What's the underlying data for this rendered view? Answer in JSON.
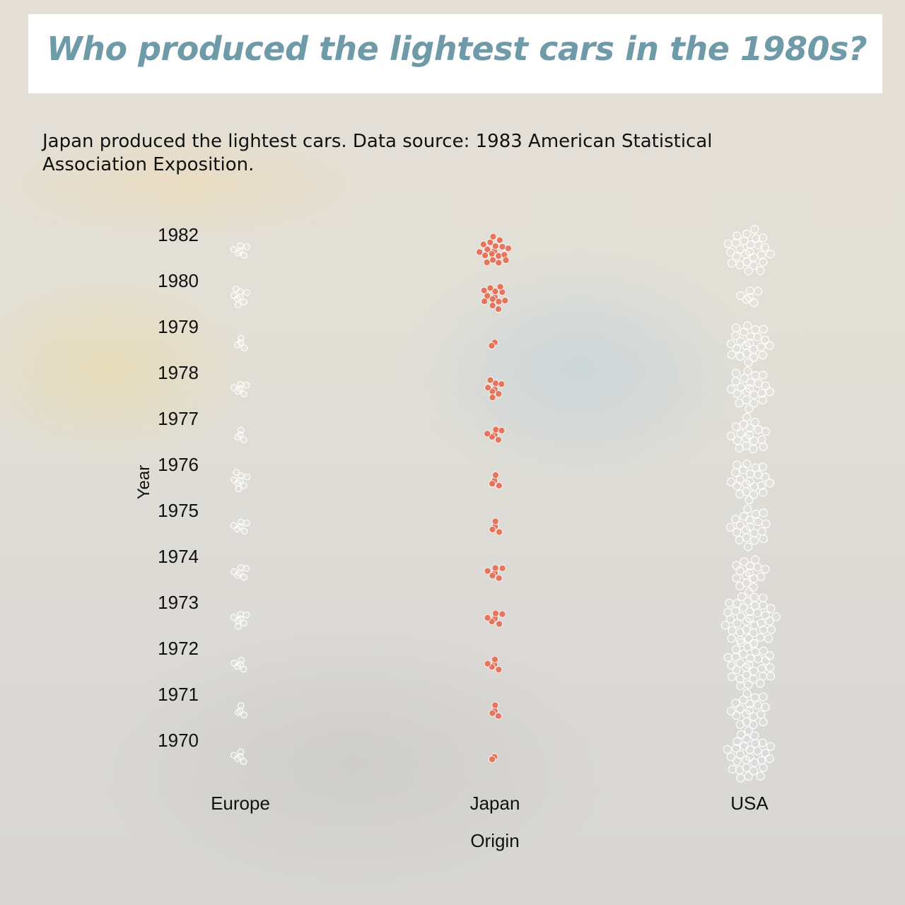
{
  "title": "Who produced the lightest cars in the 1980s?",
  "subtitle": "Japan produced the lightest cars. Data source: 1983 American Statistical Association Exposition.",
  "background": {
    "subject": "yellow-toy-car-photo"
  },
  "colors": {
    "japan": "#e5755c",
    "others": "#ffffff",
    "title": "#6f9aa8"
  },
  "chart_data": {
    "type": "scatter",
    "subtype": "beeswarm",
    "xlabel": "Origin",
    "ylabel": "Year",
    "categories": [
      "Europe",
      "Japan",
      "USA"
    ],
    "years": [
      "1970",
      "1971",
      "1972",
      "1973",
      "1974",
      "1975",
      "1976",
      "1977",
      "1978",
      "1979",
      "1980",
      "1982"
    ],
    "highlight": "Japan",
    "counts": {
      "Europe": [
        5,
        4,
        5,
        7,
        6,
        6,
        8,
        4,
        6,
        4,
        8,
        6
      ],
      "Japan": [
        2,
        4,
        5,
        6,
        6,
        4,
        4,
        6,
        8,
        2,
        13,
        18
      ],
      "USA": [
        29,
        20,
        30,
        38,
        15,
        20,
        22,
        18,
        22,
        23,
        6,
        26
      ]
    }
  }
}
